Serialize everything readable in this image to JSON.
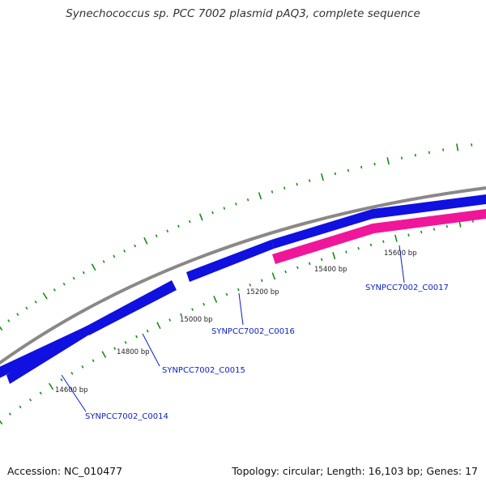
{
  "title": "Synechococcus sp. PCC 7002 plasmid pAQ3, complete sequence",
  "accession": "Accession: NC_010477",
  "summary": "Topology: circular; Length: 16,103 bp; Genes: 17",
  "colors": {
    "backbone": "#8c8888",
    "forward_gene": "#1010e0",
    "reverse_gene": "#f0169a",
    "tick": "#1a8a1a",
    "gene_label": "#0b1ec7"
  },
  "ticks": {
    "labels": [
      "14600 bp",
      "14800 bp",
      "15000 bp",
      "15200 bp",
      "15400 bp",
      "15600 bp"
    ]
  },
  "genes": [
    {
      "name": "SYNPCC7002_C0014",
      "strand": "forward"
    },
    {
      "name": "SYNPCC7002_C0015",
      "strand": "forward"
    },
    {
      "name": "SYNPCC7002_C0016",
      "strand": "forward"
    },
    {
      "name": "SYNPCC7002_C0017",
      "strand": "reverse"
    }
  ]
}
